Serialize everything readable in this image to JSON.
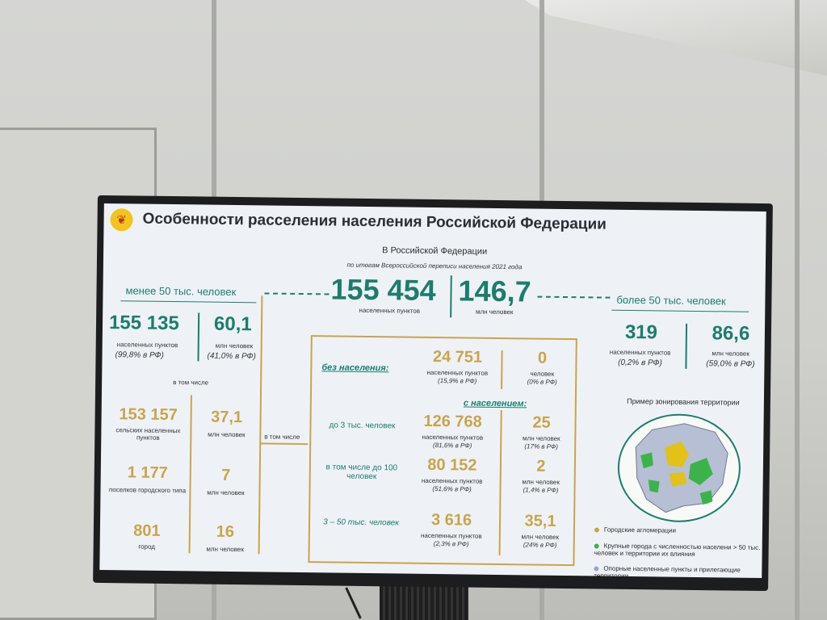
{
  "slide": {
    "title": "Особенности расселения населения Российской Федерации",
    "logo_icon": "wheat-logo-icon",
    "header": {
      "heading": "В Российской Федерации",
      "subheading": "по итогам Всероссийской переписи населения 2021 года",
      "settlements_value": "155 454",
      "settlements_label": "населенных пунктов",
      "people_value": "146,7",
      "people_label": "млн человек"
    },
    "left": {
      "heading": "менее 50 тыс. человек",
      "settlements_value": "155 135",
      "settlements_label": "населенных пунктов",
      "settlements_pct": "(99,8% в РФ)",
      "people_value": "60,1",
      "people_label": "млн человек",
      "people_pct": "(41,0% в РФ)",
      "including": "в том числе",
      "rows": [
        {
          "value": "153 157",
          "label": "сельских населенных пунктов",
          "people": "37,1",
          "people_label": "млн человек"
        },
        {
          "value": "1 177",
          "label": "поселков городского типа",
          "people": "7",
          "people_label": "млн человек"
        },
        {
          "value": "801",
          "label": "город",
          "people": "16",
          "people_label": "млн человек"
        }
      ],
      "arrow_label": "в том числе"
    },
    "middle": {
      "no_pop_label": "без населения:",
      "no_pop_value": "24 751",
      "no_pop_value_label": "населенных пунктов",
      "no_pop_value_pct": "(15,9% в РФ)",
      "no_pop_people": "0",
      "no_pop_people_label": "человек",
      "no_pop_people_pct": "(0% в РФ)",
      "with_pop_label": "с населением:",
      "rows": [
        {
          "label": "до 3 тыс. человек",
          "value": "126 768",
          "value_label": "населенных пунктов",
          "value_pct": "(81,6% в РФ)",
          "people": "25",
          "people_label": "млн человек",
          "people_pct": "(17% в РФ)"
        },
        {
          "label": "в том числе до 100 человек",
          "value": "80 152",
          "value_label": "населенных пунктов",
          "value_pct": "(51,6% в РФ)",
          "people": "2",
          "people_label": "млн человек",
          "people_pct": "(1,4% в РФ)"
        },
        {
          "label": "3 – 50 тыс. человек",
          "value": "3 616",
          "value_label": "населенных пунктов",
          "value_pct": "(2,3% в РФ)",
          "people": "35,1",
          "people_label": "млн человек",
          "people_pct": "(24% в РФ)"
        }
      ]
    },
    "right": {
      "heading": "более 50 тыс. человек",
      "settlements_value": "319",
      "settlements_label": "населенных пунктов",
      "settlements_pct": "(0,2% в РФ)",
      "people_value": "86,6",
      "people_label": "млн человек",
      "people_pct": "(59,0% в РФ)",
      "map_title": "Пример зонирования территории",
      "legend": [
        {
          "label": "Городские агломерации",
          "color": "#c9a44a"
        },
        {
          "label": "Крупные города с численностью населени > 50 тыс. человек и территории их влияния",
          "color": "#3bb34a"
        },
        {
          "label": "Опорные населенные пункты и прилегающие территории",
          "color": "#9aa6c7"
        }
      ]
    },
    "colors": {
      "accent": "#1c7d6c",
      "gold": "#c9a44a",
      "bg": "#eef2f7"
    }
  }
}
